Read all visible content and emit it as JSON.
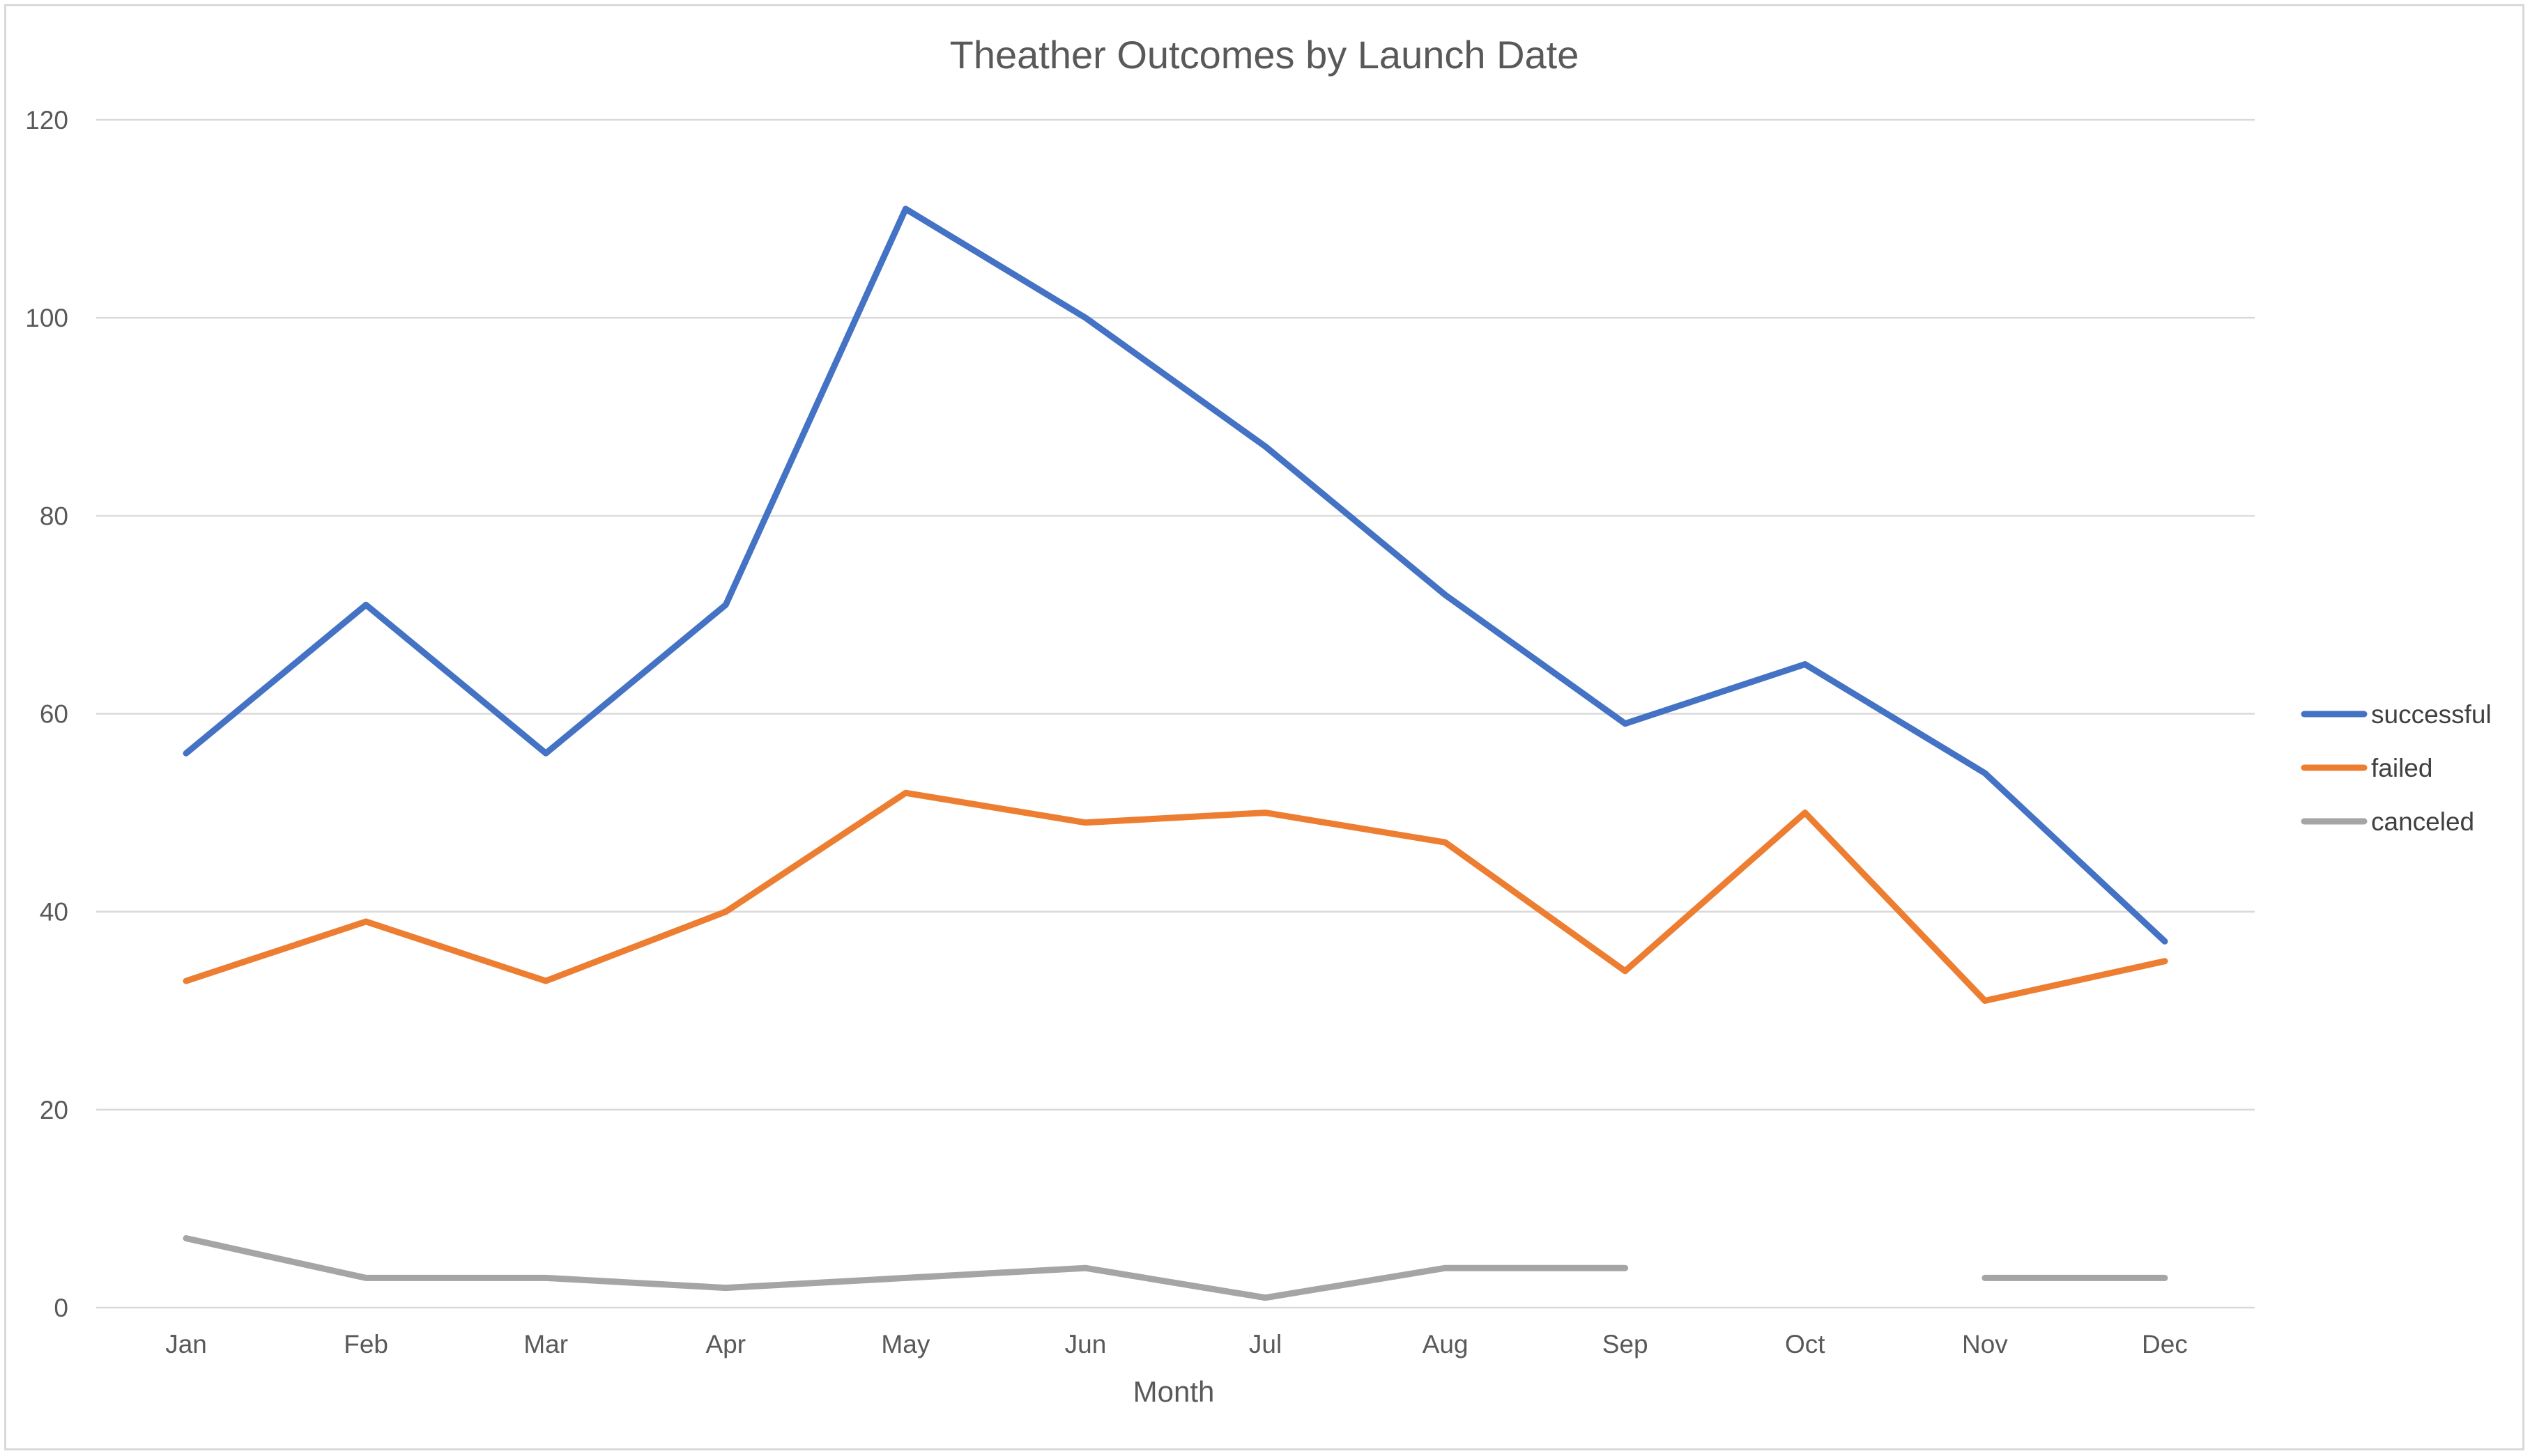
{
  "chart_data": {
    "type": "line",
    "title": "Theather Outcomes by Launch Date",
    "xlabel": "Month",
    "ylabel": "",
    "categories": [
      "Jan",
      "Feb",
      "Mar",
      "Apr",
      "May",
      "Jun",
      "Jul",
      "Aug",
      "Sep",
      "Oct",
      "Nov",
      "Dec"
    ],
    "ylim": [
      0,
      120
    ],
    "yticks": [
      0,
      20,
      40,
      60,
      80,
      100,
      120
    ],
    "grid": true,
    "legend_position": "right",
    "series": [
      {
        "name": "successful",
        "color": "#4472C4",
        "values": [
          56,
          71,
          56,
          71,
          111,
          100,
          87,
          72,
          59,
          65,
          54,
          37
        ]
      },
      {
        "name": "failed",
        "color": "#ED7D31",
        "values": [
          33,
          39,
          33,
          40,
          52,
          49,
          50,
          47,
          34,
          50,
          31,
          35
        ]
      },
      {
        "name": "canceled",
        "color": "#A5A5A5",
        "values": [
          7,
          3,
          3,
          2,
          3,
          4,
          1,
          4,
          4,
          null,
          3,
          3
        ]
      }
    ]
  }
}
